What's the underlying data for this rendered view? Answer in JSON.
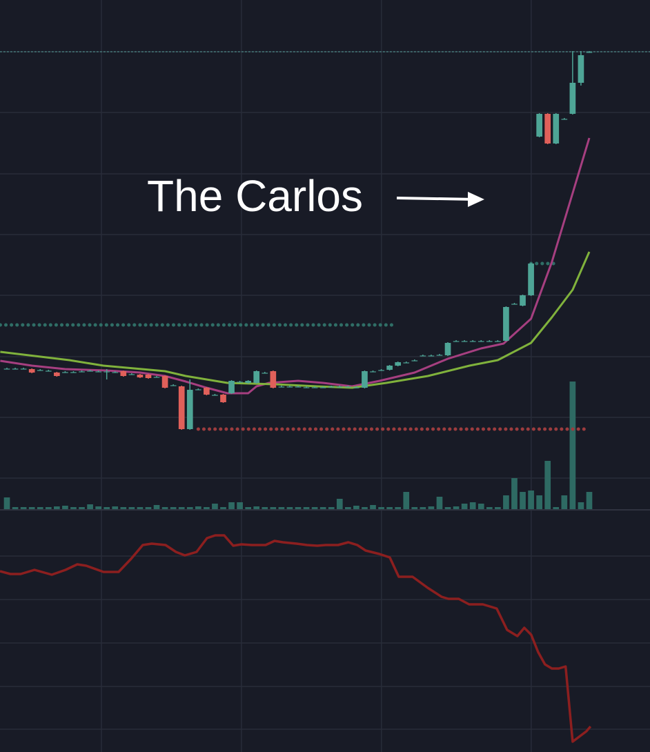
{
  "chart_data": [
    {
      "type": "candlestick",
      "annotation": "The Carlos",
      "xlim": [
        -0.83,
        77.3
      ],
      "xticks": [
        11.36,
        28.19,
        45.02,
        63.02
      ],
      "ylim": [
        0,
        738
      ],
      "yticks": [
        663,
        575,
        486,
        398,
        310,
        221,
        133,
        45
      ],
      "y2lim": [
        0,
        738
      ],
      "grid": true,
      "up_color": "#4ea596",
      "down_color": "#e0605a",
      "open": [
        204,
        204,
        204,
        203,
        202,
        201,
        198,
        199,
        199,
        200,
        201,
        200,
        200,
        199,
        200,
        196,
        195,
        195,
        192,
        193,
        180,
        178,
        116,
        174,
        176,
        166,
        166,
        168,
        185,
        183,
        183,
        198,
        200,
        178,
        178,
        178,
        177,
        177,
        177,
        178,
        178,
        178,
        177,
        176,
        200,
        202,
        202,
        208,
        213,
        216,
        223,
        223,
        224,
        223,
        244,
        244,
        244,
        244,
        244,
        244,
        244,
        298,
        295,
        310,
        540,
        573,
        530,
        566,
        573,
        618,
        663
      ],
      "high": [
        205,
        205,
        205,
        204,
        203,
        202,
        199,
        200,
        200,
        201,
        202,
        201,
        203,
        200,
        201,
        197,
        196,
        196,
        193,
        194,
        181,
        179,
        188,
        175,
        177,
        167,
        167,
        187,
        186,
        187,
        201,
        199,
        201,
        179,
        179,
        179,
        178,
        178,
        178,
        179,
        179,
        179,
        178,
        201,
        201,
        203,
        209,
        214,
        214,
        217,
        224,
        224,
        225,
        242,
        245,
        245,
        245,
        245,
        245,
        245,
        294,
        299,
        311,
        357,
        574,
        574,
        574,
        567,
        664,
        664,
        664
      ],
      "low": [
        203,
        203,
        203,
        197,
        201,
        200,
        192,
        198,
        198,
        199,
        200,
        199,
        188,
        198,
        192,
        195,
        190,
        189,
        191,
        175,
        179,
        115,
        115,
        173,
        165,
        165,
        154,
        167,
        184,
        182,
        182,
        197,
        175,
        177,
        177,
        177,
        176,
        176,
        176,
        177,
        177,
        177,
        176,
        175,
        199,
        201,
        201,
        207,
        212,
        215,
        222,
        222,
        223,
        222,
        243,
        243,
        243,
        243,
        243,
        243,
        243,
        297,
        294,
        309,
        539,
        529,
        529,
        565,
        572,
        614,
        662
      ],
      "close": [
        204,
        204,
        204,
        198,
        202,
        201,
        193,
        199,
        199,
        200,
        201,
        200,
        200,
        199,
        193,
        196,
        191,
        190,
        192,
        176,
        180,
        116,
        173,
        174,
        166,
        166,
        155,
        186,
        185,
        186,
        200,
        198,
        176,
        178,
        178,
        178,
        177,
        177,
        177,
        178,
        178,
        178,
        177,
        200,
        200,
        202,
        208,
        213,
        213,
        216,
        223,
        223,
        224,
        241,
        244,
        244,
        244,
        244,
        244,
        244,
        293,
        298,
        310,
        356,
        573,
        530,
        573,
        566,
        618,
        658,
        663
      ],
      "volume": {
        "axis": "y2",
        "color": "#2e6a63",
        "values": [
          17,
          3,
          3,
          3,
          3,
          3,
          4,
          5,
          3,
          3,
          7,
          4,
          3,
          4,
          3,
          3,
          3,
          3,
          6,
          3,
          3,
          3,
          3,
          4,
          3,
          8,
          3,
          10,
          10,
          3,
          4,
          3,
          3,
          3,
          3,
          3,
          3,
          3,
          3,
          3,
          15,
          3,
          5,
          3,
          6,
          3,
          3,
          3,
          25,
          3,
          3,
          4,
          18,
          3,
          4,
          8,
          10,
          8,
          3,
          3,
          20,
          45,
          25,
          27,
          20,
          70,
          3,
          20,
          185,
          10,
          25
        ]
      },
      "lines": [
        {
          "color": "#a63f80",
          "x": [
            -0.8,
            3,
            7,
            12,
            16,
            19,
            21.5,
            24,
            26.5,
            29,
            30,
            31.5,
            35,
            38,
            41.5,
            44.8,
            49,
            53,
            57,
            59.7,
            63,
            65.5,
            68,
            70
          ],
          "values": [
            215,
            208,
            203,
            201,
            198,
            193,
            185,
            176,
            168,
            168,
            178,
            183,
            186,
            183,
            178,
            186,
            198,
            218,
            233,
            240,
            276,
            358,
            458,
            538
          ]
        },
        {
          "color": "#80b23c",
          "x": [
            -0.8,
            7.5,
            11.6,
            19,
            21.5,
            26.5,
            32.3,
            37.3,
            41.5,
            45.6,
            50.6,
            55.6,
            59,
            63,
            65.5,
            68,
            70
          ],
          "values": [
            228,
            216,
            208,
            200,
            193,
            183,
            181,
            178,
            176,
            183,
            193,
            208,
            216,
            241,
            278,
            318,
            373
          ]
        }
      ],
      "levels": [
        {
          "color": "#2f6e66",
          "value": 267,
          "x": [
            -0.8,
            46.4
          ]
        },
        {
          "color": "#9c3c3e",
          "value": 116,
          "x": [
            23,
            70
          ]
        },
        {
          "color": "#2f6e66",
          "value": 356,
          "x": [
            63,
            66
          ]
        },
        {
          "color": "#4d8c8a",
          "value": 663,
          "x": [
            -0.8,
            77.3
          ]
        }
      ]
    },
    {
      "type": "line",
      "xlim": [
        -0.83,
        77.3
      ],
      "xticks": [
        11.36,
        28.19,
        45.02,
        63.02
      ],
      "ylim": [
        0,
        350
      ],
      "yticks": [
        284,
        221,
        158,
        95,
        33
      ],
      "grid": true,
      "series": [
        {
          "color": "#8c1f1f",
          "x": [
            -0.83,
            0.41,
            1.66,
            3.32,
            5.39,
            7.05,
            8.46,
            9.54,
            11.61,
            13.43,
            14.93,
            16.33,
            17.41,
            19.07,
            20.32,
            21.39,
            22.8,
            24.05,
            25.04,
            26.12,
            27.2,
            28.19,
            29.44,
            31.09,
            32.17,
            33.17,
            34.83,
            36.07,
            37.31,
            38.31,
            39.8,
            41.04,
            42.12,
            43.12,
            44.78,
            46.02,
            47.1,
            48.76,
            50.58,
            52.24,
            53.07,
            54.31,
            55.56,
            57.21,
            58.87,
            60.12,
            61.36,
            62.19,
            63.02,
            63.85,
            64.68,
            65.51,
            66.33,
            67.16,
            68,
            69.65,
            70.15
          ],
          "values": [
            262,
            258,
            258,
            264,
            257,
            264,
            272,
            270,
            261,
            261,
            280,
            300,
            302,
            300,
            290,
            285,
            290,
            310,
            314,
            314,
            299,
            301,
            300,
            300,
            306,
            304,
            302,
            300,
            299,
            300,
            300,
            304,
            300,
            292,
            287,
            282,
            254,
            254,
            238,
            225,
            222,
            222,
            214,
            214,
            208,
            177,
            168,
            180,
            170,
            145,
            127,
            121,
            121,
            124,
            15,
            30,
            37
          ]
        }
      ]
    }
  ]
}
